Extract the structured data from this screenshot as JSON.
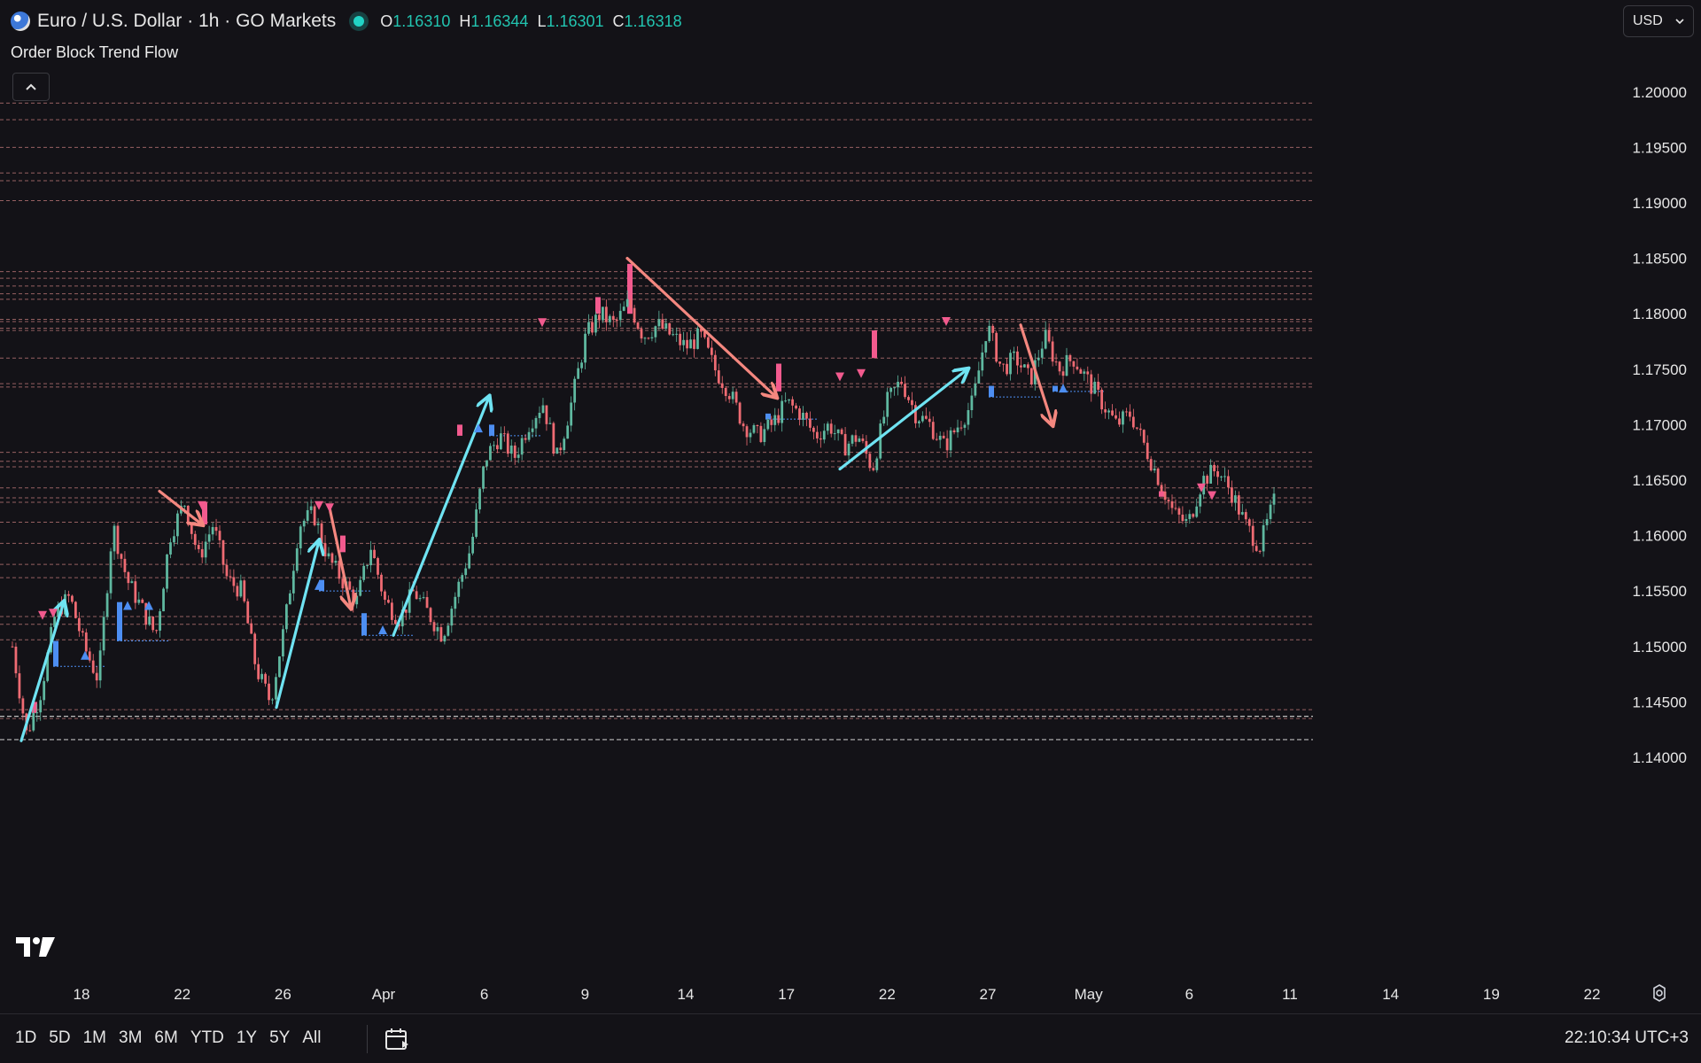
{
  "header": {
    "symbol_title": "Euro / U.S. Dollar · 1h · GO Markets",
    "ohlc": [
      {
        "key": "O",
        "value": "1.16310"
      },
      {
        "key": "H",
        "value": "1.16344"
      },
      {
        "key": "L",
        "value": "1.16301"
      },
      {
        "key": "C",
        "value": "1.16318"
      }
    ],
    "indicator_name": "Order Block Trend Flow",
    "collapse_icon": "chevron-up-icon"
  },
  "currency_selector": {
    "value": "USD",
    "icon": "chevron-down-icon"
  },
  "toolbar": {
    "ranges": [
      "1D",
      "5D",
      "1M",
      "3M",
      "6M",
      "YTD",
      "1Y",
      "5Y",
      "All"
    ],
    "calendar_icon": "calendar-icon",
    "clock": "22:10:34 UTC+3",
    "settings_icon": "gear-icon"
  },
  "colors": {
    "background": "#131217",
    "candle_up": "#5fb8a0",
    "candle_down": "#ef6b73",
    "bull_arrow": "#6fe3f2",
    "bear_arrow": "#f4877f",
    "bull_block": "#4d8ef2",
    "bear_block": "#f25a8e",
    "level_line": "#c27a7a",
    "support_line": "#bdbdbd",
    "ohlc_value": "#22c4b0"
  },
  "chart_data": {
    "type": "candlestick",
    "title": "",
    "xlabel": "",
    "ylabel": "",
    "ylim": [
      1.138,
      1.2035
    ],
    "y_ticks": [
      "1.14000",
      "1.14500",
      "1.15000",
      "1.15500",
      "1.16000",
      "1.16500",
      "1.17000",
      "1.17500",
      "1.18000",
      "1.18500",
      "1.19000",
      "1.19500",
      "1.20000"
    ],
    "x_ticks": [
      "18",
      "22",
      "26",
      "Apr",
      "6",
      "9",
      "14",
      "17",
      "22",
      "27",
      "May",
      "6",
      "11",
      "14",
      "19",
      "22"
    ],
    "grid": false,
    "price_path": [
      [
        0,
        1.15
      ],
      [
        1,
        1.142
      ],
      [
        2,
        1.146
      ],
      [
        3,
        1.153
      ],
      [
        4,
        1.1545
      ],
      [
        5,
        1.15
      ],
      [
        6,
        1.147
      ],
      [
        7,
        1.161
      ],
      [
        8,
        1.156
      ],
      [
        9,
        1.1535
      ],
      [
        10,
        1.151
      ],
      [
        11,
        1.16
      ],
      [
        12,
        1.163
      ],
      [
        13,
        1.158
      ],
      [
        14,
        1.161
      ],
      [
        15,
        1.156
      ],
      [
        16,
        1.155
      ],
      [
        17,
        1.148
      ],
      [
        18,
        1.145
      ],
      [
        19,
        1.152
      ],
      [
        20,
        1.161
      ],
      [
        21,
        1.162
      ],
      [
        22,
        1.158
      ],
      [
        23,
        1.156
      ],
      [
        24,
        1.154
      ],
      [
        25,
        1.159
      ],
      [
        26,
        1.154
      ],
      [
        27,
        1.1525
      ],
      [
        28,
        1.155
      ],
      [
        29,
        1.153
      ],
      [
        30,
        1.151
      ],
      [
        31,
        1.155
      ],
      [
        32,
        1.159
      ],
      [
        33,
        1.167
      ],
      [
        34,
        1.169
      ],
      [
        35,
        1.167
      ],
      [
        36,
        1.17
      ],
      [
        37,
        1.172
      ],
      [
        38,
        1.167
      ],
      [
        39,
        1.172
      ],
      [
        40,
        1.178
      ],
      [
        41,
        1.18
      ],
      [
        42,
        1.179
      ],
      [
        43,
        1.181
      ],
      [
        44,
        1.178
      ],
      [
        45,
        1.179
      ],
      [
        46,
        1.178
      ],
      [
        47,
        1.177
      ],
      [
        48,
        1.178
      ],
      [
        49,
        1.175
      ],
      [
        50,
        1.173
      ],
      [
        51,
        1.17
      ],
      [
        52,
        1.169
      ],
      [
        53,
        1.17
      ],
      [
        54,
        1.172
      ],
      [
        55,
        1.171
      ],
      [
        56,
        1.169
      ],
      [
        57,
        1.17
      ],
      [
        58,
        1.168
      ],
      [
        59,
        1.169
      ],
      [
        60,
        1.166
      ],
      [
        61,
        1.172
      ],
      [
        62,
        1.174
      ],
      [
        63,
        1.171
      ],
      [
        64,
        1.17
      ],
      [
        65,
        1.168
      ],
      [
        66,
        1.17
      ],
      [
        67,
        1.172
      ],
      [
        68,
        1.179
      ],
      [
        69,
        1.175
      ],
      [
        70,
        1.176
      ],
      [
        71,
        1.174
      ],
      [
        72,
        1.178
      ],
      [
        73,
        1.175
      ],
      [
        74,
        1.176
      ],
      [
        75,
        1.174
      ],
      [
        76,
        1.172
      ],
      [
        77,
        1.17
      ],
      [
        78,
        1.171
      ],
      [
        79,
        1.168
      ],
      [
        80,
        1.165
      ],
      [
        81,
        1.162
      ],
      [
        82,
        1.161
      ],
      [
        83,
        1.165
      ],
      [
        84,
        1.166
      ],
      [
        85,
        1.164
      ],
      [
        86,
        1.161
      ],
      [
        87,
        1.159
      ],
      [
        88,
        1.163
      ]
    ],
    "bull_trend_arrows": [
      [
        [
          1,
          1.1415
        ],
        [
          5,
          1.154
        ]
      ],
      [
        [
          25,
          1.1445
        ],
        [
          29,
          1.1595
        ]
      ],
      [
        [
          36,
          1.151
        ],
        [
          45,
          1.1725
        ]
      ],
      [
        [
          78,
          1.166
        ],
        [
          90,
          1.175
        ]
      ]
    ],
    "bear_trend_arrows": [
      [
        [
          14,
          1.164
        ],
        [
          18,
          1.161
        ]
      ],
      [
        [
          30,
          1.1625
        ],
        [
          32,
          1.1535
        ]
      ],
      [
        [
          58,
          1.185
        ],
        [
          72,
          1.1725
        ]
      ],
      [
        [
          95,
          1.179
        ],
        [
          98,
          1.17
        ]
      ]
    ],
    "resistance_levels": [
      1.199,
      1.1975,
      1.195,
      1.1927,
      1.192,
      1.1902,
      1.1838,
      1.1832,
      1.1825,
      1.1818,
      1.1813,
      1.1795,
      1.1787,
      1.1675,
      1.1667,
      1.1662,
      1.163,
      1.1612,
      1.1593,
      1.1574,
      1.1562,
      1.1527,
      1.152,
      1.1506,
      1.1443,
      1.1435,
      1.1793,
      1.1785,
      1.176,
      1.1737,
      1.1734,
      1.1643,
      1.1634
    ],
    "support_levels": [
      1.1437,
      1.1416
    ],
    "bull_order_blocks": [
      [
        4,
        1.1482,
        1.1505
      ],
      [
        10,
        1.1505,
        1.154
      ],
      [
        29,
        1.155,
        1.156
      ],
      [
        33,
        1.151,
        1.153
      ],
      [
        45,
        1.169,
        1.17
      ],
      [
        71,
        1.1705,
        1.171
      ],
      [
        92,
        1.1725,
        1.1735
      ],
      [
        98,
        1.173,
        1.1735
      ]
    ],
    "bear_order_blocks": [
      [
        2,
        1.144,
        1.145
      ],
      [
        18,
        1.161,
        1.163
      ],
      [
        31,
        1.1585,
        1.16
      ],
      [
        42,
        1.169,
        1.17
      ],
      [
        55,
        1.18,
        1.1815
      ],
      [
        58,
        1.18,
        1.1845
      ],
      [
        72,
        1.173,
        1.1755
      ],
      [
        81,
        1.176,
        1.1785
      ],
      [
        108,
        1.1635,
        1.164
      ]
    ],
    "signal_markers_up": [
      [
        7,
        1.1492
      ],
      [
        11,
        1.1537
      ],
      [
        13,
        1.1537
      ],
      [
        29,
        1.1555
      ],
      [
        35,
        1.1515
      ],
      [
        44,
        1.1697
      ],
      [
        99,
        1.1733
      ]
    ],
    "signal_markers_down": [
      [
        3,
        1.1528
      ],
      [
        4,
        1.153
      ],
      [
        18,
        1.1627
      ],
      [
        29,
        1.1627
      ],
      [
        30,
        1.1625
      ],
      [
        50,
        1.1792
      ],
      [
        78,
        1.1743
      ],
      [
        80,
        1.1746
      ],
      [
        88,
        1.1793
      ],
      [
        112,
        1.1643
      ],
      [
        113,
        1.1636
      ]
    ]
  }
}
